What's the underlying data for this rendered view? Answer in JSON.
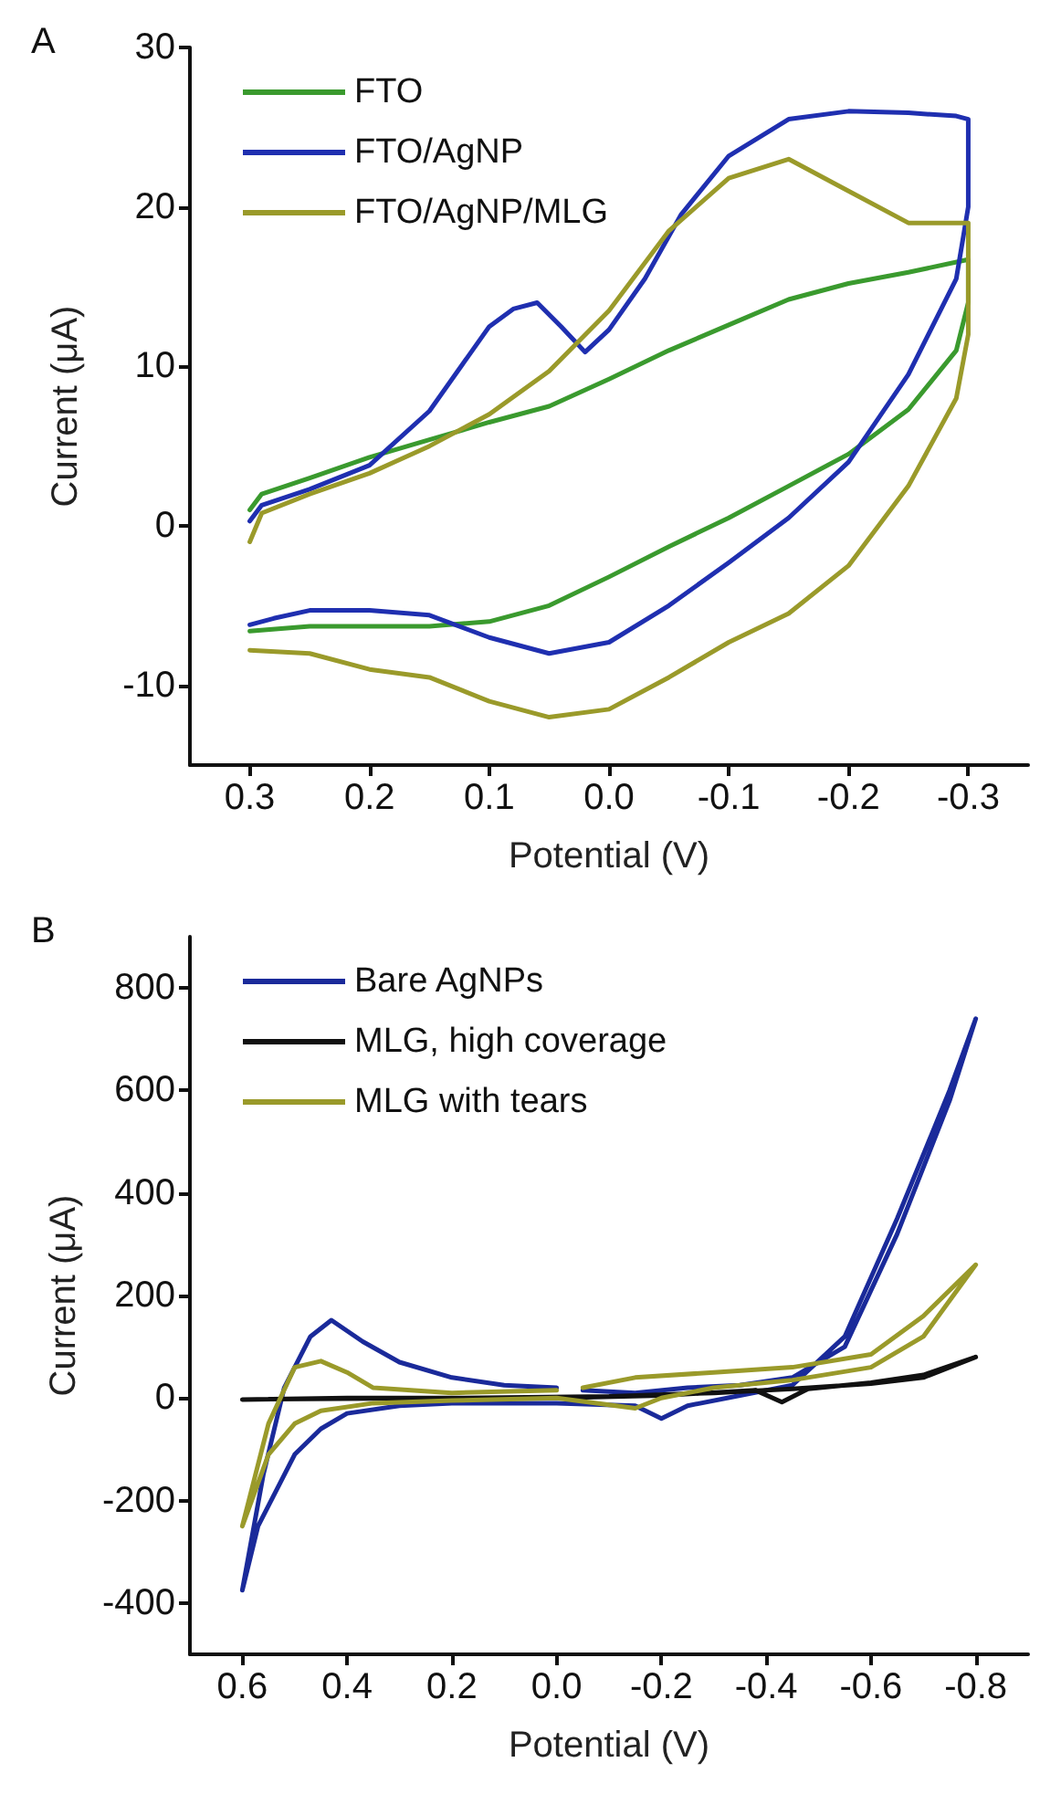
{
  "chart_data": [
    {
      "type": "line",
      "title": "A",
      "xlabel": "Potential (V)",
      "ylabel": "Current (μA)",
      "xlim": [
        0.35,
        -0.35
      ],
      "ylim": [
        -15,
        30
      ],
      "xticks": [
        0.3,
        0.2,
        0.1,
        {
          "value": 0,
          "label": "0.0"
        },
        -0.1,
        -0.2,
        -0.3
      ],
      "yticks": [
        -10,
        0,
        10,
        20,
        30
      ],
      "legend": "top left",
      "grid": false,
      "series": [
        {
          "name": "FTO",
          "color": "#3a9a2e",
          "x": [
            0.3,
            0.29,
            0.25,
            0.2,
            0.15,
            0.1,
            0.05,
            0,
            -0.05,
            -0.1,
            -0.15,
            -0.2,
            -0.25,
            -0.3,
            -0.3,
            -0.29,
            -0.25,
            -0.2,
            -0.15,
            -0.1,
            -0.05,
            0,
            0.05,
            0.1,
            0.15,
            0.2,
            0.25,
            0.3
          ],
          "values": [
            1.0,
            2.0,
            3.0,
            4.3,
            5.4,
            6.5,
            7.5,
            9.2,
            11.0,
            12.6,
            14.2,
            15.2,
            15.9,
            16.7,
            14,
            11,
            7.3,
            4.5,
            2.5,
            0.5,
            -1.3,
            -3.2,
            -5.0,
            -6.0,
            -6.3,
            -6.3,
            -6.3,
            -6.6
          ]
        },
        {
          "name": "FTO/AgNP",
          "color": "#1f2fb0",
          "x": [
            0.3,
            0.29,
            0.25,
            0.2,
            0.15,
            0.1,
            0.08,
            0.06,
            0.04,
            0.02,
            0,
            -0.03,
            -0.06,
            -0.1,
            -0.15,
            -0.2,
            -0.25,
            -0.29,
            -0.3,
            -0.3,
            -0.29,
            -0.25,
            -0.2,
            -0.15,
            -0.1,
            -0.05,
            0,
            0.05,
            0.1,
            0.15,
            0.2,
            0.25,
            0.28,
            0.3
          ],
          "values": [
            0.3,
            1.3,
            2.3,
            3.8,
            7.2,
            12.5,
            13.6,
            14.0,
            12.5,
            10.9,
            12.3,
            15.5,
            19.5,
            23.2,
            25.5,
            26.0,
            25.9,
            25.7,
            25.5,
            20,
            15.5,
            9.5,
            4.0,
            0.5,
            -2.3,
            -5.0,
            -7.3,
            -8.0,
            -7.0,
            -5.6,
            -5.3,
            -5.3,
            -5.8,
            -6.2
          ]
        },
        {
          "name": "FTO/AgNP/MLG",
          "color": "#9a9a2a",
          "x": [
            0.3,
            0.29,
            0.25,
            0.2,
            0.15,
            0.1,
            0.05,
            0,
            -0.05,
            -0.1,
            -0.15,
            -0.2,
            -0.25,
            -0.3,
            -0.3,
            -0.29,
            -0.25,
            -0.2,
            -0.15,
            -0.1,
            -0.05,
            0,
            0.05,
            0.1,
            0.15,
            0.2,
            0.25,
            0.3
          ],
          "values": [
            -1.0,
            0.8,
            2.0,
            3.3,
            5.0,
            7.0,
            9.7,
            13.5,
            18.5,
            21.8,
            23.0,
            21.0,
            19.0,
            19.0,
            12,
            8,
            2.5,
            -2.5,
            -5.5,
            -7.3,
            -9.5,
            -11.5,
            -12.0,
            -11.0,
            -9.5,
            -9.0,
            -8.0,
            -7.8
          ]
        }
      ]
    },
    {
      "type": "line",
      "title": "B",
      "xlabel": "Potential (V)",
      "ylabel": "Current (μA)",
      "xlim": [
        0.7,
        -0.9
      ],
      "ylim": [
        -500,
        900
      ],
      "xticks": [
        0.6,
        0.4,
        0.2,
        {
          "value": 0,
          "label": "0.0"
        },
        -0.2,
        -0.4,
        -0.6,
        -0.8
      ],
      "yticks": [
        -400,
        -200,
        0,
        200,
        400,
        600,
        800
      ],
      "legend": "top left",
      "grid": false,
      "series": [
        {
          "name": "Bare AgNPs",
          "color": "#1a2a9a",
          "x": [
            0,
            0.1,
            0.2,
            0.3,
            0.37,
            0.43,
            0.47,
            0.52,
            0.56,
            0.6,
            0.57,
            0.5,
            0.45,
            0.4,
            0.3,
            0.2,
            0,
            -0.15,
            -0.2,
            -0.25,
            -0.35,
            -0.45,
            -0.55,
            -0.65,
            -0.75,
            -0.8,
            -0.75,
            -0.65,
            -0.55,
            -0.45,
            -0.35,
            -0.25,
            -0.15,
            -0.05
          ],
          "values": [
            20,
            25,
            40,
            70,
            110,
            152,
            120,
            20,
            -150,
            -375,
            -250,
            -110,
            -60,
            -30,
            -15,
            -10,
            -10,
            -15,
            -40,
            -15,
            5,
            25,
            120,
            350,
            600,
            740,
            580,
            320,
            100,
            40,
            25,
            20,
            10,
            15
          ]
        },
        {
          "name": "MLG, high coverage",
          "color": "#111111",
          "x": [
            0.6,
            0.4,
            0.2,
            0,
            -0.2,
            -0.38,
            -0.43,
            -0.48,
            -0.6,
            -0.7,
            -0.8,
            -0.7,
            -0.6,
            -0.45,
            -0.3,
            -0.1,
            0.2,
            0.55
          ],
          "values": [
            -3,
            0,
            0,
            0,
            5,
            15,
            -8,
            18,
            30,
            45,
            80,
            40,
            28,
            18,
            10,
            3,
            0,
            -2
          ]
        },
        {
          "name": "MLG with tears",
          "color": "#9a9a2a",
          "x": [
            0,
            0.2,
            0.35,
            0.4,
            0.45,
            0.5,
            0.55,
            0.6,
            0.55,
            0.5,
            0.45,
            0.35,
            0.2,
            0,
            -0.15,
            -0.2,
            -0.3,
            -0.45,
            -0.6,
            -0.7,
            -0.8,
            -0.7,
            -0.6,
            -0.45,
            -0.3,
            -0.15,
            -0.05
          ],
          "values": [
            15,
            10,
            20,
            50,
            72,
            60,
            -50,
            -250,
            -110,
            -50,
            -25,
            -10,
            -5,
            0,
            -20,
            0,
            20,
            35,
            60,
            120,
            260,
            160,
            85,
            60,
            50,
            40,
            20
          ]
        }
      ]
    }
  ]
}
